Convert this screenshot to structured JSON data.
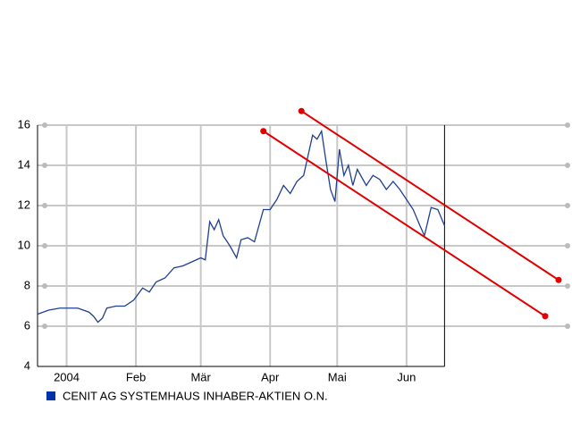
{
  "chart_data": {
    "type": "line",
    "x": [
      -13,
      -8,
      -3,
      0,
      5,
      10,
      12,
      14,
      16,
      18,
      22,
      26,
      30,
      34,
      37,
      40,
      44,
      48,
      52,
      56,
      60,
      62,
      64,
      66,
      68,
      70,
      73,
      76,
      78,
      81,
      84,
      86,
      88,
      91,
      94,
      97,
      100,
      103,
      106,
      108,
      110,
      112,
      114,
      116,
      118,
      120,
      122,
      124,
      126,
      128,
      130,
      132,
      134,
      137,
      140,
      143,
      146,
      149,
      152,
      155,
      158,
      160,
      163,
      166,
      169
    ],
    "series": [
      {
        "name": "CENIT AG SYSTEMHAUS INHABER-AKTIEN O.N.",
        "color": "#1f3f8f",
        "values": [
          6.6,
          6.8,
          6.9,
          6.9,
          6.9,
          6.7,
          6.5,
          6.2,
          6.4,
          6.9,
          7.0,
          7.0,
          7.3,
          7.9,
          7.7,
          8.2,
          8.4,
          8.9,
          9.0,
          9.2,
          9.4,
          9.3,
          11.2,
          10.8,
          11.3,
          10.5,
          10.0,
          9.4,
          10.3,
          10.4,
          10.2,
          11.0,
          11.8,
          11.8,
          12.3,
          13.0,
          12.6,
          13.2,
          13.5,
          14.5,
          15.5,
          15.3,
          15.7,
          14.2,
          12.8,
          12.2,
          14.8,
          13.5,
          14.0,
          13.0,
          13.8,
          13.4,
          13.0,
          13.5,
          13.3,
          12.8,
          13.2,
          12.8,
          12.3,
          11.8,
          11.0,
          10.5,
          11.9,
          11.8,
          11.0
        ]
      }
    ],
    "legend_color": "#0033aa",
    "trend_lines": [
      {
        "color": "#e00000",
        "x": [
          88,
          214
        ],
        "values": [
          15.7,
          6.5
        ]
      },
      {
        "color": "#e00000",
        "x": [
          105,
          220
        ],
        "values": [
          16.7,
          8.3
        ]
      }
    ],
    "xlim": [
      -13,
      224
    ],
    "ylim": [
      4,
      16
    ],
    "xticks": [
      {
        "value": 0,
        "label": "2004"
      },
      {
        "value": 31,
        "label": "Feb"
      },
      {
        "value": 60,
        "label": "Mär"
      },
      {
        "value": 91,
        "label": "Apr"
      },
      {
        "value": 121,
        "label": "Mai"
      },
      {
        "value": 152,
        "label": "Jun"
      }
    ],
    "yticks": [
      4,
      6,
      8,
      10,
      12,
      14,
      16
    ],
    "grid": true
  }
}
